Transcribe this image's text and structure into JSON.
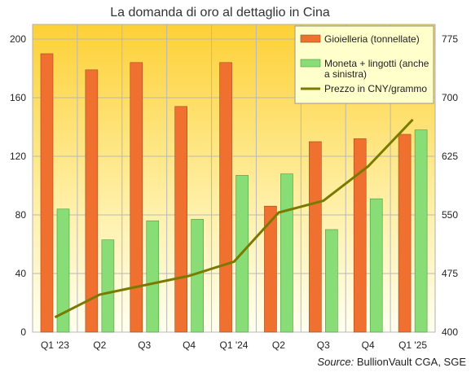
{
  "chart_data": {
    "type": "bar",
    "title": "La domanda di oro al dettaglio in Cina",
    "categories": [
      "Q1 '23",
      "Q2",
      "Q3",
      "Q4",
      "Q1 '24",
      "Q2",
      "Q3",
      "Q4",
      "Q1 '25"
    ],
    "series": [
      {
        "name": "Gioielleria (tonnellate)",
        "type": "bar",
        "axis": "left",
        "color": "#f07030",
        "values": [
          190,
          179,
          184,
          154,
          184,
          86,
          130,
          132,
          135
        ]
      },
      {
        "name": "Moneta + lingotti (anche a sinistra)",
        "type": "bar",
        "axis": "left",
        "color": "#88dd77",
        "values": [
          84,
          63,
          76,
          77,
          107,
          108,
          70,
          91,
          138
        ]
      },
      {
        "name": "Prezzo in CNY/grammo",
        "type": "line",
        "axis": "right",
        "color": "#7a7a00",
        "values": [
          419,
          448,
          460,
          472,
          490,
          553,
          568,
          612,
          672
        ]
      }
    ],
    "left_axis": {
      "min": 0,
      "max": 210,
      "ticks": [
        "0",
        "40",
        "80",
        "120",
        "160",
        "200"
      ]
    },
    "right_axis": {
      "min": 400,
      "max": 793.75,
      "ticks": [
        "400",
        "475",
        "550",
        "625",
        "700",
        "775"
      ]
    },
    "legend_position": "top-right",
    "grid": true,
    "source_label": "Source:",
    "source_text": " BullionVault CGA, SGE",
    "colors": {
      "background_top": "#fdd035",
      "background_bottom": "#fffff0",
      "legend_bg": "#ffffcc"
    }
  }
}
